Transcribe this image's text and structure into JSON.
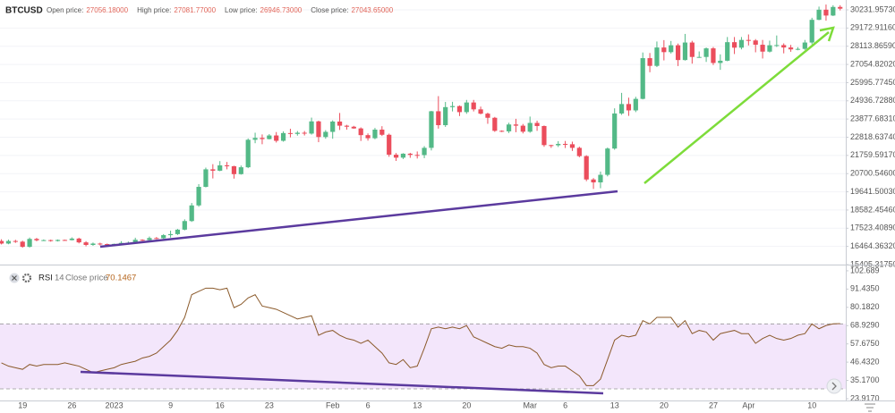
{
  "header": {
    "symbol": "BTCUSD",
    "stats": [
      {
        "label": "Open price:",
        "value": "27056.18000"
      },
      {
        "label": "High price:",
        "value": "27081.77000"
      },
      {
        "label": "Low price:",
        "value": "26946.73000"
      },
      {
        "label": "Close price:",
        "value": "27043.65000"
      }
    ]
  },
  "chart_data": [
    {
      "type": "candlestick",
      "categories": [
        null,
        null,
        null,
        "19",
        null,
        null,
        null,
        null,
        null,
        null,
        "26",
        null,
        null,
        null,
        null,
        null,
        "2023",
        null,
        null,
        null,
        null,
        null,
        null,
        null,
        "9",
        null,
        null,
        null,
        null,
        null,
        null,
        "16",
        null,
        null,
        null,
        null,
        null,
        null,
        "23",
        null,
        null,
        null,
        null,
        null,
        null,
        null,
        null,
        "Feb",
        null,
        null,
        null,
        null,
        "6",
        null,
        null,
        null,
        null,
        null,
        null,
        "13",
        null,
        null,
        null,
        null,
        null,
        null,
        "20",
        null,
        null,
        null,
        null,
        null,
        null,
        null,
        null,
        "Mar",
        null,
        null,
        null,
        null,
        "6",
        null,
        null,
        null,
        null,
        null,
        null,
        "13",
        null,
        null,
        null,
        null,
        null,
        null,
        "20",
        null,
        null,
        null,
        null,
        null,
        null,
        "27",
        null,
        null,
        null,
        null,
        "Apr",
        null,
        null,
        null,
        null,
        null,
        null,
        null,
        null,
        "10",
        null,
        null,
        null,
        null
      ],
      "open": [
        16780,
        16630,
        16780,
        16740,
        16440,
        16900,
        16820,
        16830,
        16780,
        16840,
        16830,
        16920,
        16700,
        16550,
        16630,
        16600,
        16540,
        16610,
        16670,
        16670,
        16850,
        16830,
        16950,
        16940,
        17120,
        17180,
        17440,
        17940,
        18850,
        19930,
        20950,
        20870,
        21180,
        21130,
        20670,
        21070,
        22670,
        22780,
        22710,
        22920,
        22610,
        23060,
        23010,
        23080,
        23030,
        23740,
        22830,
        23130,
        23730,
        23490,
        23430,
        23330,
        22940,
        22760,
        23260,
        22960,
        21800,
        21630,
        21860,
        21790,
        21780,
        22200,
        24330,
        23520,
        24570,
        24630,
        24280,
        24840,
        24440,
        24190,
        23950,
        23190,
        23160,
        23560,
        23490,
        23140,
        23650,
        23470,
        22360,
        22350,
        22430,
        22410,
        22200,
        21720,
        20360,
        20190,
        20630,
        22160,
        24200,
        24750,
        24380,
        25050,
        27420,
        26970,
        28040,
        27770,
        28170,
        27310,
        28330,
        27490,
        27490,
        27990,
        27140,
        27270,
        28350,
        28030,
        28480,
        28450,
        28200,
        27800,
        28170,
        28180,
        28040,
        27930,
        27960,
        28330,
        29650,
        30240,
        29900,
        30400
      ],
      "high": [
        16880,
        16860,
        16850,
        16800,
        16980,
        16960,
        16870,
        16860,
        16870,
        16860,
        16990,
        16970,
        16770,
        16690,
        16680,
        16630,
        16630,
        16770,
        16750,
        16970,
        16880,
        17040,
        17010,
        17180,
        17380,
        17480,
        18040,
        18990,
        20090,
        21050,
        21250,
        21430,
        21380,
        21160,
        21170,
        22750,
        23080,
        22980,
        23000,
        23120,
        23160,
        23310,
        23180,
        23180,
        23960,
        23780,
        23230,
        23800,
        24230,
        23540,
        23480,
        23390,
        23040,
        23360,
        23460,
        23030,
        21900,
        21890,
        21910,
        21990,
        22300,
        24350,
        25210,
        24870,
        24880,
        24670,
        24990,
        24990,
        24600,
        24250,
        24000,
        23220,
        23660,
        23890,
        23590,
        24020,
        23780,
        23500,
        22380,
        22590,
        22600,
        22560,
        22270,
        21770,
        20440,
        20820,
        22220,
        24500,
        25400,
        25120,
        25170,
        27750,
        27720,
        28390,
        28470,
        28420,
        28270,
        28830,
        28430,
        27810,
        28040,
        28070,
        27640,
        28650,
        28650,
        28650,
        28800,
        28530,
        28480,
        28440,
        28740,
        28280,
        28190,
        28060,
        28480,
        29770,
        30420,
        30540,
        30500,
        30500
      ],
      "low": [
        16580,
        16590,
        16670,
        16390,
        16400,
        16760,
        16780,
        16740,
        16750,
        16800,
        16810,
        16640,
        16470,
        16500,
        16520,
        16470,
        16510,
        16550,
        16620,
        16640,
        16780,
        16810,
        16880,
        16900,
        16980,
        17130,
        17400,
        17890,
        18770,
        19900,
        20420,
        20840,
        20950,
        20410,
        20640,
        21020,
        22470,
        22410,
        22690,
        22510,
        22560,
        22810,
        22910,
        22920,
        22970,
        22530,
        22730,
        22730,
        23240,
        23260,
        23310,
        22600,
        22620,
        22700,
        22890,
        21680,
        21440,
        21550,
        21620,
        21580,
        21600,
        22050,
        23320,
        23420,
        24320,
        24050,
        24180,
        24320,
        24150,
        23600,
        23130,
        23120,
        23060,
        23110,
        23040,
        23080,
        23190,
        22260,
        22200,
        22250,
        22190,
        22020,
        21650,
        20260,
        19810,
        19850,
        20540,
        22090,
        24120,
        24060,
        24280,
        25020,
        26600,
        26900,
        27290,
        27690,
        26960,
        27280,
        27100,
        27440,
        27200,
        27020,
        26740,
        27240,
        27660,
        27930,
        28160,
        27760,
        27400,
        27750,
        28070,
        27700,
        27790,
        27880,
        27900,
        28230,
        29630,
        29600,
        29870,
        30200
      ],
      "close": [
        16630,
        16780,
        16740,
        16440,
        16900,
        16820,
        16830,
        16780,
        16840,
        16830,
        16920,
        16700,
        16550,
        16630,
        16600,
        16540,
        16610,
        16670,
        16670,
        16850,
        16830,
        16950,
        16940,
        17120,
        17180,
        17440,
        17940,
        18850,
        19930,
        20950,
        20870,
        21180,
        21130,
        20670,
        21070,
        22670,
        22780,
        22710,
        22920,
        22610,
        23060,
        23010,
        23080,
        23030,
        23740,
        22830,
        23130,
        23730,
        23490,
        23430,
        23330,
        22940,
        22760,
        23260,
        22960,
        21800,
        21630,
        21860,
        21790,
        21780,
        22200,
        24330,
        23520,
        24570,
        24630,
        24280,
        24840,
        24440,
        24190,
        23950,
        23190,
        23160,
        23560,
        23490,
        23140,
        23650,
        23470,
        22360,
        22350,
        22430,
        22410,
        22200,
        21720,
        20360,
        20190,
        20630,
        22160,
        24200,
        24750,
        24380,
        25050,
        27420,
        26970,
        28040,
        27770,
        28170,
        27310,
        28330,
        27490,
        27490,
        27990,
        27140,
        27270,
        28350,
        28030,
        28480,
        28450,
        28200,
        27800,
        28170,
        28180,
        28040,
        27930,
        27960,
        28330,
        29650,
        30240,
        29900,
        30400,
        30300
      ],
      "up_color": "#53b987",
      "down_color": "#eb4d5c",
      "ylim": [
        15405.3175,
        30804
      ],
      "yticks": [
        {
          "value": 15405.3175,
          "label": "15405.31750"
        },
        {
          "value": 16464.3632,
          "label": "16464.36320"
        },
        {
          "value": 17523.4089,
          "label": "17523.40890"
        },
        {
          "value": 18582.4546,
          "label": "18582.45460"
        },
        {
          "value": 19641.5003,
          "label": "19641.50030"
        },
        {
          "value": 20700.546,
          "label": "20700.54600"
        },
        {
          "value": 21759.5917,
          "label": "21759.59170"
        },
        {
          "value": 22818.6374,
          "label": "22818.63740"
        },
        {
          "value": 23877.6831,
          "label": "23877.68310"
        },
        {
          "value": 24936.7288,
          "label": "24936.72880"
        },
        {
          "value": 25995.7745,
          "label": "25995.77450"
        },
        {
          "value": 27054.8202,
          "label": "27054.82020"
        },
        {
          "value": 28113.8659,
          "label": "28113.86590"
        },
        {
          "value": 29172.9116,
          "label": "29172.91160"
        },
        {
          "value": 30231.9573,
          "label": "30231.95730"
        }
      ],
      "grid": true
    },
    {
      "type": "line",
      "title": "RSI",
      "period": 14,
      "source": "Close price",
      "last_value": 70.1467,
      "color": "#8b5a2b",
      "band": [
        30,
        70
      ],
      "band_color": "#f3e6fb",
      "values": [
        46,
        44,
        43,
        42,
        45,
        44,
        45,
        45,
        45,
        46,
        45,
        44,
        42,
        40,
        41,
        42,
        43,
        45,
        46,
        47,
        49,
        50,
        52,
        56,
        60,
        66,
        74,
        88,
        90,
        92,
        92,
        91,
        92,
        80,
        82,
        86,
        88,
        81,
        80,
        79,
        77,
        75,
        73,
        74,
        75,
        63,
        65,
        66,
        63,
        61,
        60,
        58,
        60,
        56,
        52,
        46,
        45,
        48,
        43,
        44,
        55,
        67,
        68,
        67,
        68,
        67,
        69,
        62,
        60,
        58,
        56,
        55,
        57,
        56,
        56,
        55,
        52,
        45,
        43,
        44,
        44,
        41,
        38,
        32,
        32,
        36,
        48,
        60,
        63,
        62,
        63,
        72,
        70,
        74,
        74,
        74,
        68,
        72,
        64,
        66,
        65,
        60,
        64,
        65,
        66,
        64,
        64,
        58,
        61,
        63,
        61,
        60,
        61,
        63,
        64,
        70,
        67,
        69,
        70,
        70.1467
      ],
      "ylim": [
        22.83,
        105.95
      ],
      "yticks": [
        {
          "value": 23.917,
          "label": "23.9170"
        },
        {
          "value": 35.17,
          "label": "35.1700"
        },
        {
          "value": 46.432,
          "label": "46.4320"
        },
        {
          "value": 57.675,
          "label": "57.6750"
        },
        {
          "value": 68.929,
          "label": "68.9290"
        },
        {
          "value": 80.182,
          "label": "80.1820"
        },
        {
          "value": 91.435,
          "label": "91.4350"
        },
        102.689
      ]
    }
  ]
}
